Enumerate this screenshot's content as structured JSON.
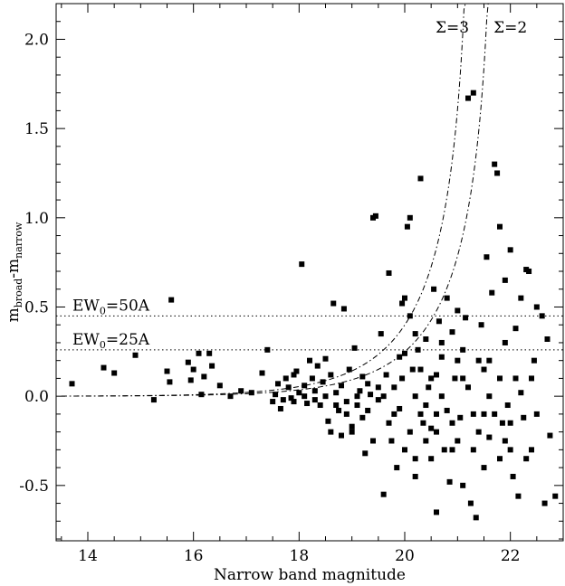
{
  "chart_data": {
    "type": "scatter",
    "title": "",
    "xlabel": "Narrow band magnitude",
    "ylabel": {
      "base": "m",
      "sub1": "broad",
      "dash": "-m",
      "sub2": "narrow"
    },
    "xlim": [
      13.4,
      23.0
    ],
    "ylim": [
      -0.81,
      2.2
    ],
    "xticks": [
      14,
      16,
      18,
      20,
      22
    ],
    "yticks": [
      -0.5,
      0.0,
      0.5,
      1.0,
      1.5,
      2.0
    ],
    "xtick_labels": [
      "14",
      "16",
      "18",
      "20",
      "22"
    ],
    "ytick_labels": [
      "-0.5",
      "0.0",
      "0.5",
      "1.0",
      "1.5",
      "2.0"
    ],
    "grid": false,
    "hlines": [
      {
        "y": 0.45,
        "label_base": "EW",
        "label_sub": "0",
        "label_rest": "=50A"
      },
      {
        "y": 0.26,
        "label_base": "EW",
        "label_sub": "0",
        "label_rest": "=25A"
      }
    ],
    "sigma_curves": [
      {
        "label": "Σ=3",
        "x_asymptote": 21.28,
        "label_x": 20.9
      },
      {
        "label": "Σ=2",
        "x_asymptote": 21.72,
        "label_x": 22.0
      }
    ],
    "points": [
      [
        13.7,
        0.07
      ],
      [
        14.3,
        0.16
      ],
      [
        14.5,
        0.13
      ],
      [
        14.9,
        0.23
      ],
      [
        15.25,
        -0.02
      ],
      [
        15.5,
        0.14
      ],
      [
        15.55,
        0.08
      ],
      [
        15.58,
        0.54
      ],
      [
        15.9,
        0.19
      ],
      [
        15.95,
        0.09
      ],
      [
        16.0,
        0.15
      ],
      [
        16.1,
        0.24
      ],
      [
        16.15,
        0.01
      ],
      [
        16.2,
        0.11
      ],
      [
        16.3,
        0.24
      ],
      [
        16.35,
        0.17
      ],
      [
        16.5,
        0.06
      ],
      [
        16.7,
        0.0
      ],
      [
        16.9,
        0.03
      ],
      [
        17.1,
        0.02
      ],
      [
        17.3,
        0.13
      ],
      [
        17.4,
        0.26
      ],
      [
        17.5,
        -0.03
      ],
      [
        17.55,
        0.01
      ],
      [
        17.6,
        0.07
      ],
      [
        17.65,
        -0.07
      ],
      [
        17.7,
        -0.02
      ],
      [
        17.75,
        0.1
      ],
      [
        17.8,
        0.05
      ],
      [
        17.85,
        -0.01
      ],
      [
        17.9,
        0.12
      ],
      [
        17.95,
        0.14
      ],
      [
        18.0,
        0.02
      ],
      [
        18.05,
        0.74
      ],
      [
        18.1,
        0.06
      ],
      [
        18.15,
        -0.04
      ],
      [
        18.2,
        0.2
      ],
      [
        18.25,
        0.1
      ],
      [
        18.3,
        0.03
      ],
      [
        18.35,
        0.17
      ],
      [
        18.4,
        -0.05
      ],
      [
        18.45,
        0.08
      ],
      [
        18.5,
        0.21
      ],
      [
        18.55,
        -0.14
      ],
      [
        18.6,
        0.12
      ],
      [
        18.65,
        0.52
      ],
      [
        18.7,
        0.02
      ],
      [
        18.75,
        -0.08
      ],
      [
        18.8,
        0.06
      ],
      [
        18.85,
        0.49
      ],
      [
        18.9,
        -0.03
      ],
      [
        18.95,
        0.15
      ],
      [
        19.0,
        -0.17
      ],
      [
        19.05,
        0.27
      ],
      [
        19.1,
        -0.05
      ],
      [
        19.15,
        0.03
      ],
      [
        19.2,
        0.11
      ],
      [
        19.25,
        -0.32
      ],
      [
        19.3,
        0.07
      ],
      [
        19.35,
        0.01
      ],
      [
        19.4,
        1.0
      ],
      [
        19.45,
        1.01
      ],
      [
        19.5,
        -0.02
      ],
      [
        19.55,
        0.35
      ],
      [
        19.6,
        -0.55
      ],
      [
        19.65,
        0.12
      ],
      [
        19.7,
        0.69
      ],
      [
        19.75,
        -0.25
      ],
      [
        19.8,
        0.05
      ],
      [
        19.85,
        -0.4
      ],
      [
        19.9,
        0.22
      ],
      [
        19.95,
        0.52
      ],
      [
        20.0,
        0.24
      ],
      [
        20.05,
        0.95
      ],
      [
        20.1,
        1.0
      ],
      [
        20.15,
        0.15
      ],
      [
        20.2,
        -0.35
      ],
      [
        20.25,
        0.26
      ],
      [
        20.3,
        1.22
      ],
      [
        20.35,
        -0.15
      ],
      [
        20.4,
        0.32
      ],
      [
        20.45,
        0.05
      ],
      [
        20.5,
        -0.18
      ],
      [
        20.55,
        0.6
      ],
      [
        20.6,
        -0.65
      ],
      [
        20.65,
        0.42
      ],
      [
        20.7,
        0.22
      ],
      [
        20.75,
        -0.3
      ],
      [
        20.8,
        0.55
      ],
      [
        20.85,
        -0.48
      ],
      [
        20.9,
        0.36
      ],
      [
        20.95,
        0.1
      ],
      [
        21.0,
        0.48
      ],
      [
        21.05,
        -0.12
      ],
      [
        21.1,
        0.26
      ],
      [
        21.15,
        0.44
      ],
      [
        21.2,
        1.67
      ],
      [
        21.25,
        -0.6
      ],
      [
        21.3,
        1.7
      ],
      [
        21.35,
        -0.68
      ],
      [
        21.4,
        0.2
      ],
      [
        21.45,
        0.4
      ],
      [
        21.5,
        -0.4
      ],
      [
        21.55,
        0.78
      ],
      [
        21.6,
        -0.23
      ],
      [
        21.65,
        0.58
      ],
      [
        21.7,
        1.3
      ],
      [
        21.75,
        1.25
      ],
      [
        21.8,
        0.95
      ],
      [
        21.85,
        -0.15
      ],
      [
        21.9,
        0.3
      ],
      [
        21.95,
        -0.05
      ],
      [
        22.0,
        0.82
      ],
      [
        22.05,
        -0.45
      ],
      [
        22.1,
        0.38
      ],
      [
        22.15,
        -0.56
      ],
      [
        22.2,
        0.55
      ],
      [
        22.25,
        -0.12
      ],
      [
        22.3,
        0.71
      ],
      [
        22.35,
        0.7
      ],
      [
        22.4,
        -0.3
      ],
      [
        22.45,
        0.2
      ],
      [
        22.5,
        0.5
      ],
      [
        22.6,
        0.45
      ],
      [
        22.65,
        -0.6
      ],
      [
        22.7,
        0.32
      ],
      [
        22.75,
        -0.22
      ],
      [
        22.85,
        -0.56
      ],
      [
        20.0,
        0.55
      ],
      [
        20.1,
        0.45
      ],
      [
        20.3,
        -0.1
      ],
      [
        20.5,
        0.1
      ],
      [
        20.6,
        -0.2
      ],
      [
        20.9,
        -0.3
      ],
      [
        21.1,
        -0.5
      ],
      [
        21.3,
        -0.3
      ],
      [
        21.5,
        0.15
      ],
      [
        21.7,
        -0.1
      ],
      [
        21.9,
        -0.25
      ],
      [
        22.1,
        0.1
      ],
      [
        19.6,
        0.0
      ],
      [
        19.8,
        -0.1
      ],
      [
        20.2,
        0.0
      ],
      [
        20.4,
        -0.05
      ],
      [
        19.0,
        -0.2
      ],
      [
        19.2,
        -0.12
      ],
      [
        18.6,
        -0.2
      ],
      [
        18.8,
        -0.22
      ],
      [
        19.4,
        -0.25
      ],
      [
        19.9,
        -0.07
      ],
      [
        20.7,
        0.0
      ],
      [
        21.0,
        -0.25
      ],
      [
        21.2,
        0.05
      ],
      [
        21.4,
        -0.2
      ],
      [
        21.6,
        0.0
      ],
      [
        21.8,
        -0.35
      ],
      [
        22.0,
        -0.15
      ],
      [
        22.2,
        0.02
      ],
      [
        22.4,
        0.1
      ],
      [
        20.8,
        -0.08
      ],
      [
        20.0,
        -0.3
      ],
      [
        20.2,
        -0.45
      ],
      [
        20.4,
        -0.25
      ],
      [
        20.6,
        -0.1
      ],
      [
        19.7,
        -0.15
      ],
      [
        19.5,
        0.05
      ],
      [
        19.3,
        -0.08
      ],
      [
        19.1,
        0.0
      ],
      [
        18.9,
        -0.1
      ],
      [
        18.7,
        -0.05
      ],
      [
        18.5,
        0.0
      ],
      [
        18.3,
        -0.02
      ],
      [
        18.1,
        0.0
      ],
      [
        17.9,
        -0.03
      ],
      [
        21.9,
        0.65
      ],
      [
        21.6,
        0.2
      ],
      [
        21.3,
        -0.1
      ],
      [
        21.1,
        0.1
      ],
      [
        20.9,
        -0.15
      ],
      [
        20.7,
        0.3
      ],
      [
        20.5,
        -0.35
      ],
      [
        20.3,
        0.15
      ],
      [
        20.1,
        -0.2
      ],
      [
        19.95,
        0.1
      ],
      [
        22.3,
        -0.35
      ],
      [
        22.5,
        -0.1
      ],
      [
        22.0,
        -0.3
      ],
      [
        21.8,
        0.1
      ],
      [
        21.5,
        -0.1
      ],
      [
        21.0,
        0.2
      ],
      [
        20.6,
        0.12
      ],
      [
        20.2,
        0.35
      ]
    ]
  }
}
